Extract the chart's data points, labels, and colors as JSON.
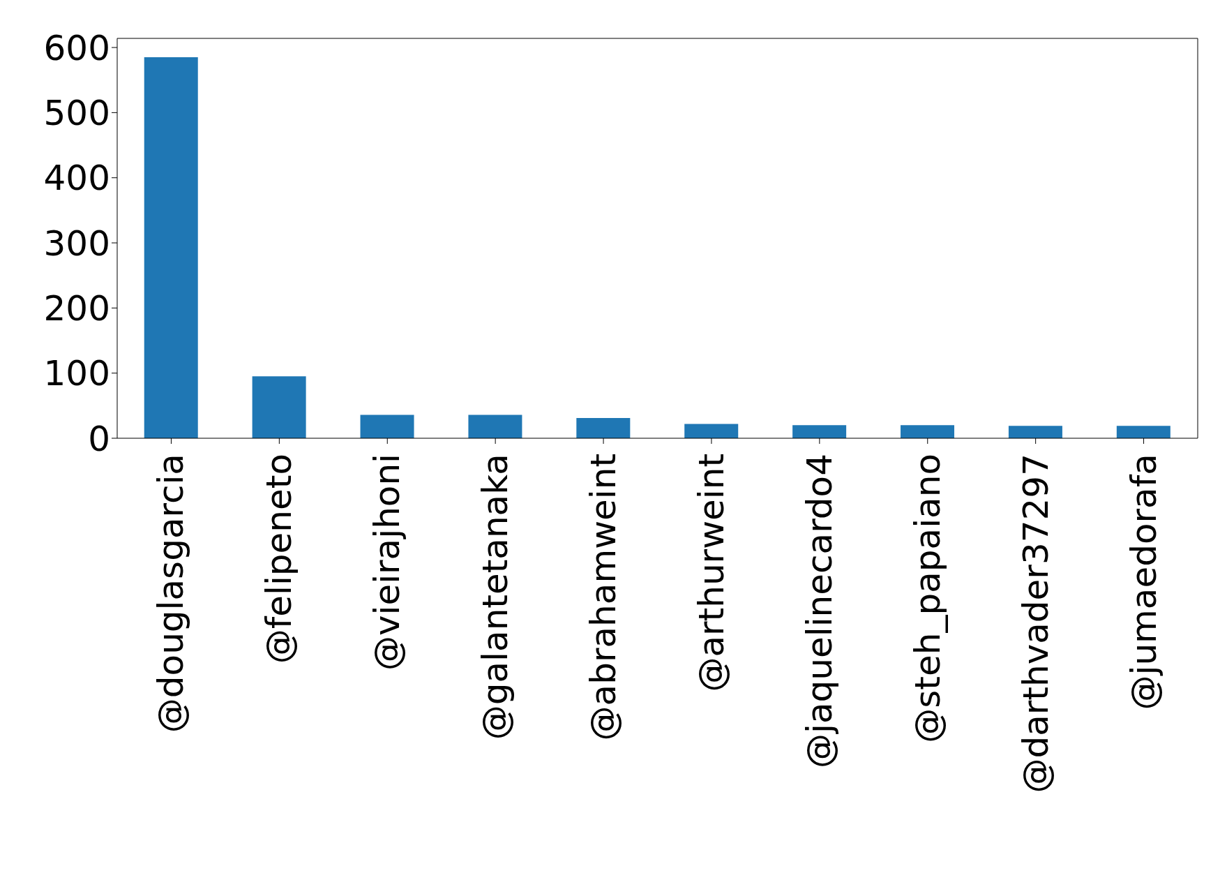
{
  "chart_data": {
    "type": "bar",
    "categories": [
      "@douglasgarcia",
      "@felipeneto",
      "@vieirajhoni",
      "@galantetanaka",
      "@abrahamweint",
      "@arthurweint",
      "@jaquelinecardo4",
      "@steh_papaiano",
      "@darthvader37297",
      "@jumaedorafa"
    ],
    "values": [
      585,
      95,
      36,
      36,
      31,
      22,
      20,
      20,
      19,
      19
    ],
    "color": "#1f77b4",
    "ylim": [
      0,
      614
    ],
    "yticks": [
      0,
      100,
      200,
      300,
      400,
      500,
      600
    ],
    "grid": false,
    "legend": false
  }
}
